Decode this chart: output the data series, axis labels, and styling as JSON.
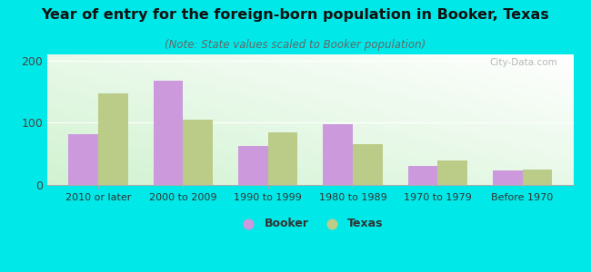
{
  "categories": [
    "2010 or later",
    "2000 to 2009",
    "1990 to 1999",
    "1980 to 1989",
    "1970 to 1979",
    "Before 1970"
  ],
  "booker_values": [
    82,
    168,
    62,
    97,
    30,
    23
  ],
  "texas_values": [
    148,
    105,
    85,
    65,
    40,
    25
  ],
  "booker_color": "#cc99dd",
  "texas_color": "#bbcc88",
  "title": "Year of entry for the foreign-born population in Booker, Texas",
  "subtitle": "(Note: State values scaled to Booker population)",
  "ylim": [
    0,
    210
  ],
  "yticks": [
    0,
    100,
    200
  ],
  "background_color": "#00e8e8",
  "title_fontsize": 11.5,
  "subtitle_fontsize": 8.5,
  "legend_labels": [
    "Booker",
    "Texas"
  ],
  "bar_width": 0.35,
  "watermark": "City-Data.com"
}
